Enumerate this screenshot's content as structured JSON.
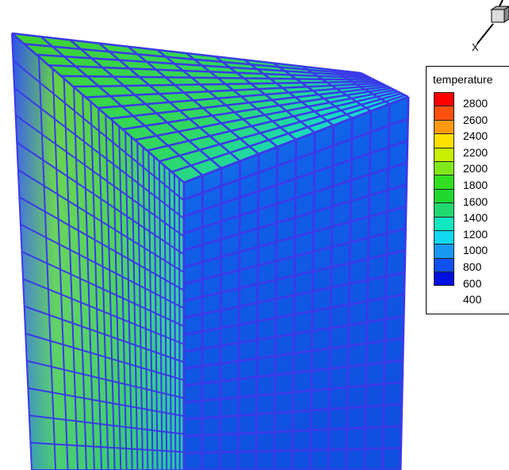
{
  "chart_data": {
    "type": "heatmap",
    "subtype": "3d-contour-mesh",
    "legend": {
      "title": "temperature",
      "placement": "top-right",
      "levels": [
        2800,
        2600,
        2400,
        2200,
        2000,
        1800,
        1600,
        1400,
        1200,
        1000,
        800,
        600,
        400
      ],
      "band_colors": [
        "#ff0000",
        "#ff5010",
        "#ff9a10",
        "#ffe000",
        "#c8f000",
        "#80e81a",
        "#30e020",
        "#20d830",
        "#20d870",
        "#10e8c0",
        "#10d8f0",
        "#1898f0",
        "#1050f0",
        "#0010e0"
      ]
    },
    "axis_triad": {
      "x_label": "X"
    },
    "mesh_line_color": "#3a3ae8"
  }
}
